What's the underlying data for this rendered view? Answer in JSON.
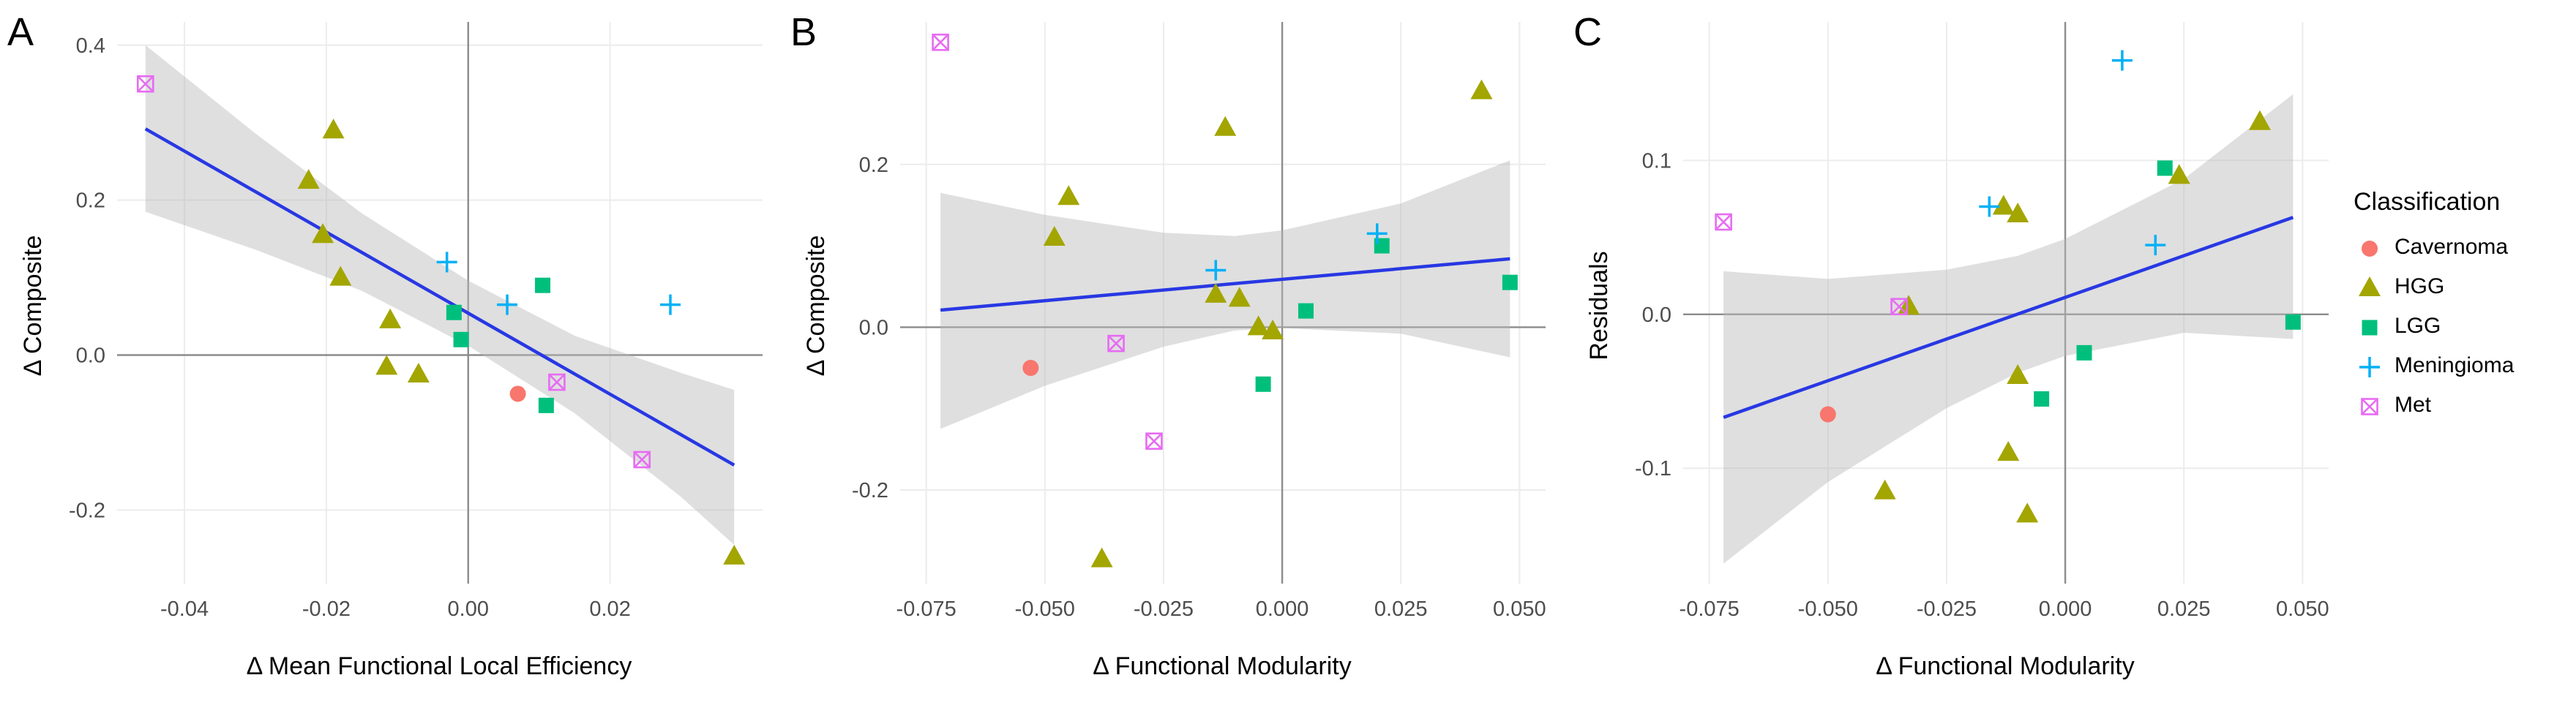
{
  "legend": {
    "title": "Classification",
    "items": [
      {
        "label": "Cavernoma",
        "shape": "circle",
        "color": "#F8766D"
      },
      {
        "label": "HGG",
        "shape": "triangle",
        "color": "#A3A500"
      },
      {
        "label": "LGG",
        "shape": "square",
        "color": "#00BF7D"
      },
      {
        "label": "Meningioma",
        "shape": "plus",
        "color": "#00B0F6"
      },
      {
        "label": "Met",
        "shape": "square-cross",
        "color": "#E76BF3"
      }
    ]
  },
  "style": {
    "regression_color": "#2838E3",
    "band_color": "#b9b9b9",
    "band_opacity": 0.45,
    "grid_color": "#ececec",
    "zero_line_color": "#8c8c8c",
    "tick_label_color": "#4d4d4d",
    "background": "#ffffff"
  },
  "chart_data": [
    {
      "type": "scatter",
      "panel_label": "A",
      "xlabel": "Δ Mean Functional Local Efficiency",
      "ylabel": "Δ Composite",
      "xlim": [
        -0.0495,
        0.0415
      ],
      "ylim": [
        -0.295,
        0.43
      ],
      "xticks": [
        {
          "v": -0.04,
          "label": "-0.04"
        },
        {
          "v": -0.02,
          "label": "-0.02"
        },
        {
          "v": 0,
          "label": "0.00"
        },
        {
          "v": 0.02,
          "label": "0.02"
        }
      ],
      "yticks": [
        {
          "v": -0.2,
          "label": "-0.2"
        },
        {
          "v": 0,
          "label": "0.0"
        },
        {
          "v": 0.2,
          "label": "0.2"
        },
        {
          "v": 0.4,
          "label": "0.4"
        }
      ],
      "zero_lines": {
        "x": 0,
        "y": 0
      },
      "regression": {
        "x1": -0.0455,
        "y1": 0.292,
        "x2": 0.0375,
        "y2": -0.142
      },
      "ci_band": {
        "x": [
          -0.0455,
          -0.03,
          -0.015,
          0.0,
          0.015,
          0.03,
          0.0375
        ],
        "upper": [
          0.4,
          0.286,
          0.183,
          0.096,
          0.025,
          -0.023,
          -0.045
        ],
        "lower": [
          0.185,
          0.136,
          0.083,
          0.012,
          -0.075,
          -0.183,
          -0.245
        ]
      },
      "series": [
        {
          "name": "Cavernoma",
          "points": [
            [
              0.007,
              -0.05
            ]
          ]
        },
        {
          "name": "HGG",
          "points": [
            [
              -0.019,
              0.29
            ],
            [
              -0.0225,
              0.225
            ],
            [
              -0.0205,
              0.155
            ],
            [
              -0.018,
              0.1
            ],
            [
              -0.011,
              0.045
            ],
            [
              -0.0115,
              -0.015
            ],
            [
              -0.007,
              -0.025
            ],
            [
              0.0375,
              -0.26
            ]
          ]
        },
        {
          "name": "LGG",
          "points": [
            [
              -0.002,
              0.055
            ],
            [
              -0.001,
              0.02
            ],
            [
              0.0105,
              0.09
            ],
            [
              0.011,
              -0.065
            ]
          ]
        },
        {
          "name": "Meningioma",
          "points": [
            [
              -0.003,
              0.12
            ],
            [
              0.0055,
              0.065
            ],
            [
              0.0285,
              0.065
            ]
          ]
        },
        {
          "name": "Met",
          "points": [
            [
              -0.0455,
              0.35
            ],
            [
              0.0125,
              -0.035
            ],
            [
              0.0245,
              -0.135
            ]
          ]
        }
      ]
    },
    {
      "type": "scatter",
      "panel_label": "B",
      "xlabel": "Δ Functional Modularity",
      "ylabel": "Δ Composite",
      "xlim": [
        -0.0805,
        0.0555
      ],
      "ylim": [
        -0.315,
        0.375
      ],
      "xticks": [
        {
          "v": -0.075,
          "label": "-0.075"
        },
        {
          "v": -0.05,
          "label": "-0.050"
        },
        {
          "v": -0.025,
          "label": "-0.025"
        },
        {
          "v": 0,
          "label": "0.000"
        },
        {
          "v": 0.025,
          "label": "0.025"
        },
        {
          "v": 0.05,
          "label": "0.050"
        }
      ],
      "yticks": [
        {
          "v": -0.2,
          "label": "-0.2"
        },
        {
          "v": 0,
          "label": "0.0"
        },
        {
          "v": 0.2,
          "label": "0.2"
        }
      ],
      "zero_lines": {
        "x": 0,
        "y": 0
      },
      "regression": {
        "x1": -0.072,
        "y1": 0.021,
        "x2": 0.048,
        "y2": 0.084
      },
      "ci_band": {
        "x": [
          -0.072,
          -0.05,
          -0.025,
          -0.01,
          0.0,
          0.025,
          0.048
        ],
        "upper": [
          0.165,
          0.138,
          0.116,
          0.112,
          0.119,
          0.152,
          0.205
        ],
        "lower": [
          -0.125,
          -0.072,
          -0.024,
          -0.004,
          -0.001,
          -0.008,
          -0.037
        ]
      },
      "series": [
        {
          "name": "Cavernoma",
          "points": [
            [
              -0.053,
              -0.05
            ]
          ]
        },
        {
          "name": "HGG",
          "points": [
            [
              -0.045,
              0.16
            ],
            [
              -0.048,
              0.11
            ],
            [
              -0.038,
              -0.285
            ],
            [
              -0.012,
              0.245
            ],
            [
              -0.014,
              0.04
            ],
            [
              -0.009,
              0.035
            ],
            [
              -0.005,
              0.0
            ],
            [
              -0.002,
              -0.005
            ],
            [
              0.042,
              0.29
            ]
          ]
        },
        {
          "name": "LGG",
          "points": [
            [
              -0.004,
              -0.07
            ],
            [
              0.005,
              0.02
            ],
            [
              0.021,
              0.1
            ],
            [
              0.048,
              0.055
            ]
          ]
        },
        {
          "name": "Meningioma",
          "points": [
            [
              -0.014,
              0.07
            ],
            [
              0.02,
              0.115
            ]
          ]
        },
        {
          "name": "Met",
          "points": [
            [
              -0.072,
              0.35
            ],
            [
              -0.035,
              -0.02
            ],
            [
              -0.027,
              -0.14
            ]
          ]
        }
      ]
    },
    {
      "type": "scatter",
      "panel_label": "C",
      "xlabel": "Δ Functional Modularity",
      "ylabel": "Residuals",
      "xlim": [
        -0.0805,
        0.0555
      ],
      "ylim": [
        -0.175,
        0.19
      ],
      "xticks": [
        {
          "v": -0.075,
          "label": "-0.075"
        },
        {
          "v": -0.05,
          "label": "-0.050"
        },
        {
          "v": -0.025,
          "label": "-0.025"
        },
        {
          "v": 0,
          "label": "0.000"
        },
        {
          "v": 0.025,
          "label": "0.025"
        },
        {
          "v": 0.05,
          "label": "0.050"
        }
      ],
      "yticks": [
        {
          "v": -0.1,
          "label": "-0.1"
        },
        {
          "v": 0,
          "label": "0.0"
        },
        {
          "v": 0.1,
          "label": "0.1"
        }
      ],
      "zero_lines": {
        "x": 0,
        "y": 0
      },
      "regression": {
        "x1": -0.072,
        "y1": -0.067,
        "x2": 0.048,
        "y2": 0.063
      },
      "ci_band": {
        "x": [
          -0.072,
          -0.05,
          -0.025,
          -0.01,
          0.0,
          0.025,
          0.048
        ],
        "upper": [
          0.028,
          0.023,
          0.029,
          0.038,
          0.049,
          0.088,
          0.143
        ],
        "lower": [
          -0.162,
          -0.109,
          -0.061,
          -0.038,
          -0.027,
          -0.012,
          -0.016
        ]
      },
      "series": [
        {
          "name": "Cavernoma",
          "points": [
            [
              -0.05,
              -0.065
            ]
          ]
        },
        {
          "name": "HGG",
          "points": [
            [
              -0.038,
              -0.115
            ],
            [
              -0.033,
              0.005
            ],
            [
              -0.013,
              0.07
            ],
            [
              -0.01,
              0.065
            ],
            [
              -0.012,
              -0.09
            ],
            [
              -0.01,
              -0.04
            ],
            [
              -0.008,
              -0.13
            ],
            [
              0.024,
              0.09
            ],
            [
              0.041,
              0.125
            ]
          ]
        },
        {
          "name": "LGG",
          "points": [
            [
              -0.005,
              -0.055
            ],
            [
              0.004,
              -0.025
            ],
            [
              0.021,
              0.095
            ],
            [
              0.048,
              -0.005
            ]
          ]
        },
        {
          "name": "Meningioma",
          "points": [
            [
              -0.016,
              0.07
            ],
            [
              0.012,
              0.165
            ],
            [
              0.019,
              0.045
            ]
          ]
        },
        {
          "name": "Met",
          "points": [
            [
              -0.072,
              0.06
            ],
            [
              -0.035,
              0.005
            ]
          ]
        }
      ]
    }
  ]
}
